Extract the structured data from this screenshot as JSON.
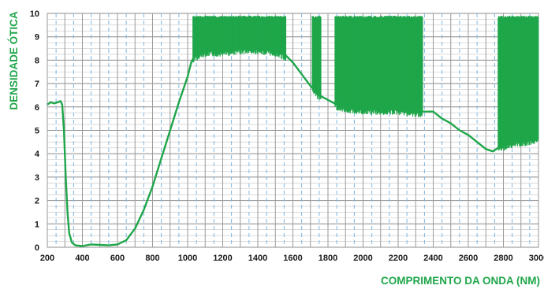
{
  "chart_data": {
    "type": "line",
    "title": "",
    "xlabel": "COMPRIMENTO DA ONDA (NM)",
    "ylabel": "DENSIDADE ÓTICA",
    "xlim": [
      200,
      3000
    ],
    "ylim": [
      0,
      10
    ],
    "x_ticks": [
      200,
      400,
      600,
      800,
      1000,
      1200,
      1400,
      1600,
      1800,
      2000,
      2200,
      2400,
      2600,
      2800,
      3000
    ],
    "y_ticks": [
      0,
      1,
      2,
      3,
      4,
      5,
      6,
      7,
      8,
      9,
      10
    ],
    "grid": true,
    "line_color": "#1fa64a",
    "series": [
      {
        "points": [
          [
            200,
            6.1
          ],
          [
            220,
            6.2
          ],
          [
            240,
            6.15
          ],
          [
            260,
            6.2
          ],
          [
            275,
            6.25
          ],
          [
            285,
            6.1
          ],
          [
            295,
            5.0
          ],
          [
            305,
            3.0
          ],
          [
            315,
            1.5
          ],
          [
            325,
            0.6
          ],
          [
            340,
            0.2
          ],
          [
            360,
            0.08
          ],
          [
            400,
            0.05
          ],
          [
            450,
            0.12
          ],
          [
            500,
            0.1
          ],
          [
            550,
            0.08
          ],
          [
            600,
            0.12
          ],
          [
            650,
            0.3
          ],
          [
            700,
            0.8
          ],
          [
            750,
            1.6
          ],
          [
            800,
            2.6
          ],
          [
            850,
            3.8
          ],
          [
            900,
            5.0
          ],
          [
            950,
            6.2
          ],
          [
            1000,
            7.3
          ],
          [
            1020,
            7.9
          ],
          [
            1040,
            8.2
          ],
          [
            1100,
            8.4
          ],
          [
            1200,
            8.4
          ],
          [
            1300,
            8.5
          ],
          [
            1400,
            8.5
          ],
          [
            1500,
            8.4
          ],
          [
            1560,
            8.2
          ],
          [
            1600,
            7.9
          ],
          [
            1650,
            7.4
          ],
          [
            1700,
            6.9
          ],
          [
            1750,
            6.5
          ],
          [
            1800,
            6.3
          ],
          [
            1850,
            6.1
          ],
          [
            1900,
            6.0
          ],
          [
            2000,
            5.9
          ],
          [
            2100,
            5.9
          ],
          [
            2200,
            5.9
          ],
          [
            2300,
            5.8
          ],
          [
            2400,
            5.8
          ],
          [
            2450,
            5.5
          ],
          [
            2500,
            5.3
          ],
          [
            2550,
            5.0
          ],
          [
            2600,
            4.8
          ],
          [
            2650,
            4.5
          ],
          [
            2700,
            4.2
          ],
          [
            2740,
            4.1
          ],
          [
            2780,
            4.3
          ],
          [
            2850,
            4.5
          ],
          [
            2950,
            4.6
          ],
          [
            3000,
            4.7
          ]
        ],
        "saturated_bands": [
          [
            1030,
            1560
          ],
          [
            1710,
            1760
          ],
          [
            1840,
            2000
          ],
          [
            2000,
            2340
          ],
          [
            2770,
            3000
          ]
        ],
        "saturation_level": 9.9
      }
    ]
  }
}
